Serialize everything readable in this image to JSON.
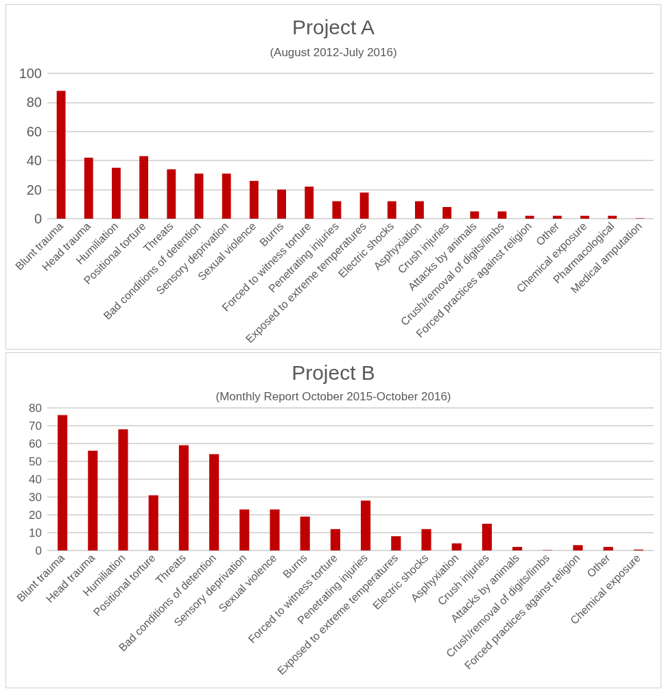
{
  "chart_data": [
    {
      "type": "bar",
      "title": "Project A",
      "subtitle": "(August 2012-July 2016)",
      "categories": [
        "Blunt trauma",
        "Head trauma",
        "Humiliation",
        "Positional torture",
        "Threats",
        "Bad conditions of detention",
        "Sensory deprivation",
        "Sexual violence",
        "Burns",
        "Forced to witness torture",
        "Penetrating injuries",
        "Exposed to extreme temperatures",
        "Electric shocks",
        "Asphyxiation",
        "Crush injuries",
        "Attacks by animals",
        "Crush/removal of digits/limbs",
        "Forced practices against religion",
        "Other",
        "Chemical exposure",
        "Pharmacological",
        "Medical amputation"
      ],
      "values": [
        88,
        42,
        35,
        43,
        34,
        31,
        31,
        26,
        20,
        22,
        12,
        18,
        12,
        12,
        8,
        5,
        5,
        2,
        2,
        2,
        2,
        0.3
      ],
      "color": "#c00000",
      "ylim": [
        0,
        100
      ],
      "yticks": [
        0,
        20,
        40,
        60,
        80,
        100
      ],
      "grid": "y"
    },
    {
      "type": "bar",
      "title": "Project B",
      "subtitle": "(Monthly Report October 2015-October 2016)",
      "categories": [
        "Blunt trauma",
        "Head trauma",
        "Humiliation",
        "Positional torture",
        "Threats",
        "Bad conditions of detention",
        "Sensory deprivation",
        "Sexual violence",
        "Burns",
        "Forced to witness torture",
        "Penetrating injuries",
        "Exposed to extreme temperatures",
        "Electric shocks",
        "Asphyxiation",
        "Crush injuries",
        "Attacks by animals",
        "Crush/removal of digits/limbs",
        "Forced practices against religion",
        "Other",
        "Chemical exposure"
      ],
      "values": [
        76,
        56,
        68,
        31,
        59,
        54,
        23,
        23,
        19,
        12,
        28,
        8,
        12,
        4,
        15,
        2,
        0.2,
        3,
        2,
        0.5
      ],
      "color": "#c00000",
      "ylim": [
        0,
        80
      ],
      "yticks": [
        0,
        10,
        20,
        30,
        40,
        50,
        60,
        70,
        80
      ],
      "grid": "y"
    }
  ]
}
